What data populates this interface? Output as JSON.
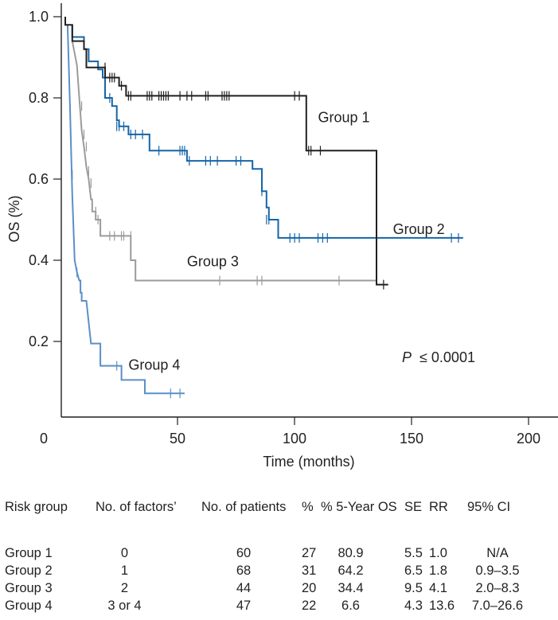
{
  "chart_data": {
    "type": "line",
    "subtype": "kaplan-meier step",
    "xlabel": "Time (months)",
    "ylabel": "OS (%)",
    "xlim": [
      0,
      200
    ],
    "ylim": [
      0,
      1.0
    ],
    "xticks": [
      0,
      50,
      100,
      150,
      200
    ],
    "xtick_labels": [
      "0",
      "50",
      "100",
      "150",
      "200"
    ],
    "yticks": [
      0.2,
      0.4,
      0.6,
      0.8,
      1.0
    ],
    "ytick_labels": [
      "0.2",
      "0.4",
      "0.6",
      "0.8",
      "1.0"
    ],
    "grid": false,
    "annotation": {
      "p_symbol": "P",
      "p_text": "≤ 0.0001"
    },
    "series": [
      {
        "name": "Group 1",
        "color": "#231f20",
        "steps": [
          [
            0,
            1.0
          ],
          [
            0,
            0.98
          ],
          [
            3,
            0.98
          ],
          [
            3,
            0.94
          ],
          [
            8,
            0.94
          ],
          [
            8,
            0.92
          ],
          [
            9,
            0.92
          ],
          [
            9,
            0.875
          ],
          [
            17,
            0.875
          ],
          [
            17,
            0.85
          ],
          [
            23,
            0.85
          ],
          [
            23,
            0.83
          ],
          [
            26,
            0.83
          ],
          [
            26,
            0.805
          ],
          [
            103,
            0.805
          ],
          [
            103,
            0.67
          ],
          [
            133,
            0.67
          ],
          [
            133,
            0.34
          ],
          [
            138,
            0.34
          ]
        ],
        "censored": [
          [
            17,
            0.875
          ],
          [
            19,
            0.85
          ],
          [
            20,
            0.85
          ],
          [
            21,
            0.85
          ],
          [
            24,
            0.83
          ],
          [
            27,
            0.805
          ],
          [
            28,
            0.805
          ],
          [
            35,
            0.805
          ],
          [
            36,
            0.805
          ],
          [
            37,
            0.805
          ],
          [
            40,
            0.805
          ],
          [
            41,
            0.805
          ],
          [
            42,
            0.805
          ],
          [
            43,
            0.805
          ],
          [
            44,
            0.805
          ],
          [
            49,
            0.805
          ],
          [
            52,
            0.805
          ],
          [
            54,
            0.805
          ],
          [
            60,
            0.805
          ],
          [
            61,
            0.805
          ],
          [
            67,
            0.805
          ],
          [
            68,
            0.805
          ],
          [
            69,
            0.805
          ],
          [
            70,
            0.805
          ],
          [
            98,
            0.805
          ],
          [
            100,
            0.805
          ],
          [
            104,
            0.67
          ],
          [
            105,
            0.67
          ],
          [
            109,
            0.67
          ],
          [
            136,
            0.34
          ]
        ],
        "label_pos": [
          108,
          0.74
        ]
      },
      {
        "name": "Group 2",
        "color": "#1565a8",
        "steps": [
          [
            3,
            0.98
          ],
          [
            3,
            0.95
          ],
          [
            8,
            0.95
          ],
          [
            8,
            0.92
          ],
          [
            10,
            0.92
          ],
          [
            10,
            0.89
          ],
          [
            14,
            0.89
          ],
          [
            14,
            0.87
          ],
          [
            16,
            0.87
          ],
          [
            16,
            0.85
          ],
          [
            17,
            0.85
          ],
          [
            17,
            0.8
          ],
          [
            20,
            0.8
          ],
          [
            20,
            0.78
          ],
          [
            22,
            0.78
          ],
          [
            22,
            0.745
          ],
          [
            23,
            0.745
          ],
          [
            23,
            0.73
          ],
          [
            27,
            0.73
          ],
          [
            27,
            0.71
          ],
          [
            36,
            0.71
          ],
          [
            36,
            0.67
          ],
          [
            52,
            0.67
          ],
          [
            52,
            0.645
          ],
          [
            80,
            0.645
          ],
          [
            80,
            0.625
          ],
          [
            84,
            0.625
          ],
          [
            84,
            0.57
          ],
          [
            86,
            0.57
          ],
          [
            86,
            0.53
          ],
          [
            87,
            0.53
          ],
          [
            87,
            0.5
          ],
          [
            91,
            0.5
          ],
          [
            91,
            0.455
          ],
          [
            170,
            0.455
          ]
        ],
        "censored": [
          [
            19,
            0.8
          ],
          [
            22,
            0.73
          ],
          [
            23,
            0.73
          ],
          [
            25,
            0.73
          ],
          [
            28,
            0.71
          ],
          [
            30,
            0.71
          ],
          [
            33,
            0.71
          ],
          [
            40,
            0.67
          ],
          [
            49,
            0.67
          ],
          [
            50,
            0.67
          ],
          [
            51,
            0.67
          ],
          [
            53,
            0.645
          ],
          [
            60,
            0.645
          ],
          [
            62,
            0.645
          ],
          [
            65,
            0.645
          ],
          [
            73,
            0.645
          ],
          [
            75,
            0.645
          ],
          [
            84,
            0.57
          ],
          [
            86,
            0.5
          ],
          [
            87,
            0.5
          ],
          [
            96,
            0.455
          ],
          [
            98,
            0.455
          ],
          [
            100,
            0.455
          ],
          [
            108,
            0.455
          ],
          [
            110,
            0.455
          ],
          [
            112,
            0.455
          ],
          [
            165,
            0.455
          ],
          [
            168,
            0.455
          ]
        ],
        "label_pos": [
          140,
          0.465
        ]
      },
      {
        "name": "Group 3",
        "color": "#9b9b9b",
        "steps": [
          [
            3,
            0.94
          ],
          [
            5,
            0.88
          ],
          [
            6,
            0.8
          ],
          [
            7,
            0.72
          ],
          [
            8,
            0.68
          ],
          [
            9,
            0.63
          ],
          [
            10,
            0.6
          ],
          [
            11,
            0.55
          ],
          [
            11.5,
            0.55
          ],
          [
            11.5,
            0.52
          ],
          [
            13,
            0.52
          ],
          [
            13,
            0.5
          ],
          [
            15,
            0.5
          ],
          [
            15,
            0.46
          ],
          [
            28,
            0.46
          ],
          [
            28,
            0.4
          ],
          [
            30,
            0.4
          ],
          [
            30,
            0.35
          ],
          [
            133,
            0.35
          ]
        ],
        "censored": [
          [
            7,
            0.78
          ],
          [
            8,
            0.71
          ],
          [
            9,
            0.68
          ],
          [
            10,
            0.62
          ],
          [
            11,
            0.59
          ],
          [
            13,
            0.52
          ],
          [
            14,
            0.5
          ],
          [
            19,
            0.46
          ],
          [
            21,
            0.46
          ],
          [
            24,
            0.46
          ],
          [
            25,
            0.46
          ],
          [
            28,
            0.46
          ],
          [
            66,
            0.35
          ],
          [
            82,
            0.35
          ],
          [
            84,
            0.35
          ],
          [
            117,
            0.35
          ]
        ],
        "label_pos": [
          52,
          0.385
        ]
      },
      {
        "name": "Group 4",
        "color": "#5b8fc9",
        "steps": [
          [
            1,
            0.98
          ],
          [
            2,
            0.78
          ],
          [
            3,
            0.56
          ],
          [
            4,
            0.4
          ],
          [
            5,
            0.37
          ],
          [
            6,
            0.35
          ],
          [
            6.5,
            0.35
          ],
          [
            6.5,
            0.32
          ],
          [
            7,
            0.32
          ],
          [
            7,
            0.3
          ],
          [
            9,
            0.3
          ],
          [
            11,
            0.195
          ],
          [
            15,
            0.195
          ],
          [
            15,
            0.14
          ],
          [
            24,
            0.14
          ],
          [
            24,
            0.105
          ],
          [
            34,
            0.105
          ],
          [
            34,
            0.072
          ],
          [
            51,
            0.072
          ]
        ],
        "censored": [
          [
            2,
            0.79
          ],
          [
            3,
            0.61
          ],
          [
            3,
            0.565
          ],
          [
            5,
            0.37
          ],
          [
            22,
            0.14
          ],
          [
            45,
            0.072
          ],
          [
            49,
            0.072
          ]
        ],
        "label_pos": [
          27,
          0.13
        ]
      }
    ]
  },
  "table": {
    "headers": [
      "Risk group",
      "No. of factors’",
      "No. of patients",
      "%",
      "% 5-Year OS",
      "SE",
      "RR",
      "95% CI"
    ],
    "rows": [
      [
        "Group 1",
        "0",
        "60",
        "27",
        "80.9",
        "5.5",
        "1.0",
        "N/A"
      ],
      [
        "Group 2",
        "1",
        "68",
        "31",
        "64.2",
        "6.5",
        "1.8",
        "0.9–3.5"
      ],
      [
        "Group 3",
        "2",
        "44",
        "20",
        "34.4",
        "9.5",
        "4.1",
        "2.0–8.3"
      ],
      [
        "Group 4",
        "3 or 4",
        "47",
        "22",
        "6.6",
        "4.3",
        "13.6",
        "7.0–26.6"
      ]
    ]
  }
}
